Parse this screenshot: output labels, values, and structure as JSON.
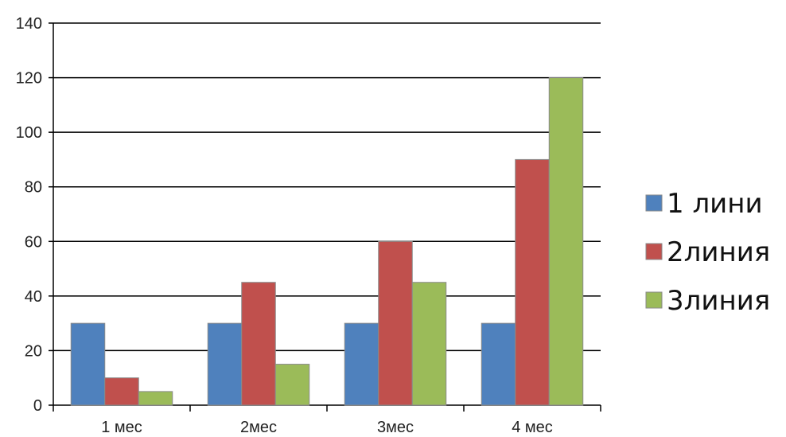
{
  "chart_data": {
    "type": "bar",
    "categories": [
      "1 мес",
      "2мес",
      "3мес",
      "4 мес"
    ],
    "series": [
      {
        "name": "1 лини",
        "color": "#4f81bd",
        "values": [
          30,
          30,
          30,
          30
        ]
      },
      {
        "name": "2линия",
        "color": "#c0504d",
        "values": [
          10,
          45,
          60,
          90
        ]
      },
      {
        "name": "3линия",
        "color": "#9bbb59",
        "values": [
          5,
          15,
          45,
          120
        ]
      }
    ],
    "yticks": [
      0,
      20,
      40,
      60,
      80,
      100,
      120,
      140
    ],
    "ylim": [
      0,
      140
    ],
    "grid": true,
    "legend_position": "right"
  }
}
